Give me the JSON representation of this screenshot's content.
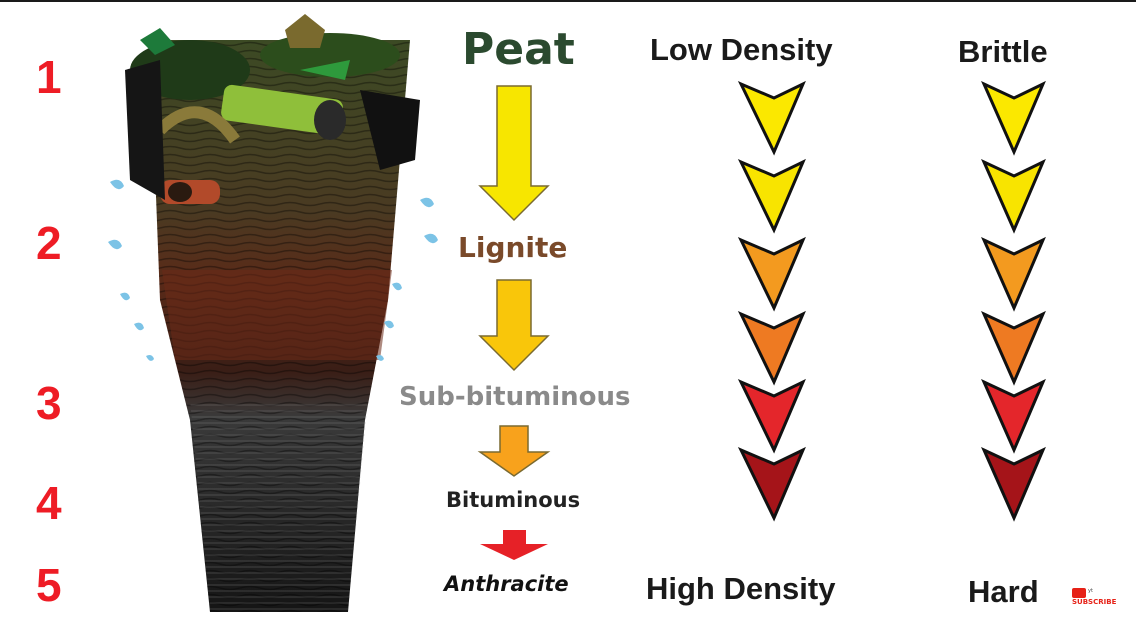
{
  "numbers": [
    "1",
    "2",
    "3",
    "4",
    "5"
  ],
  "stages": {
    "peat": "Peat",
    "lignite": "Lignite",
    "sub_bituminous": "Sub-bituminous",
    "bituminous": "Bituminous",
    "anthracite": "Anthracite"
  },
  "density": {
    "top": "Low Density",
    "bottom": "High Density"
  },
  "hardness": {
    "top": "Brittle",
    "bottom": "Hard"
  },
  "subscribe": {
    "label": "SUBSCRIBE",
    "small": "yt"
  },
  "colors": {
    "number_red": "#ee1c25",
    "arrow_yellow": "#f7e600",
    "arrow_gold": "#f9c60a",
    "arrow_orange": "#f8a21c",
    "arrow_red": "#e62127",
    "chevron_scale": [
      "#fbe800",
      "#f8e400",
      "#f39a1f",
      "#ee7a22",
      "#e4262b",
      "#a51419"
    ]
  }
}
